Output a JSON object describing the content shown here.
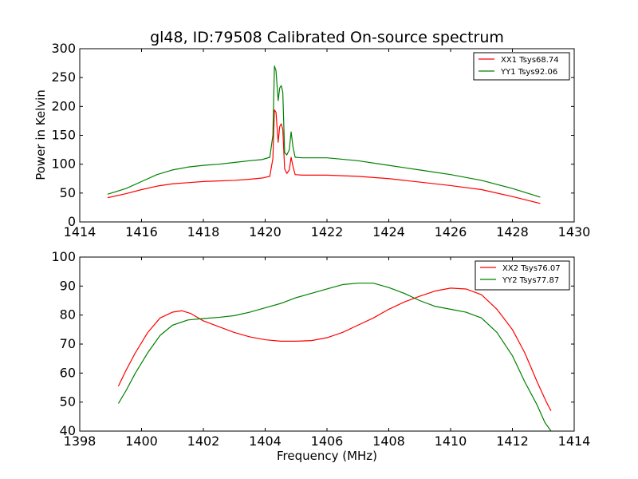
{
  "title": "gl48, ID:79508 Calibrated On-source spectrum",
  "chart_data": [
    {
      "type": "line",
      "title": "gl48, ID:79508 Calibrated On-source spectrum",
      "xlabel": "",
      "ylabel": "Power in Kelvin",
      "xlim": [
        1414,
        1430
      ],
      "ylim": [
        0,
        300
      ],
      "xticks": [
        1414,
        1416,
        1418,
        1420,
        1422,
        1424,
        1426,
        1428,
        1430
      ],
      "yticks": [
        0,
        50,
        100,
        150,
        200,
        250,
        300
      ],
      "grid": false,
      "legend_position": "top-right",
      "series": [
        {
          "name": "XX1 Tsys68.74",
          "color": "#ff0000",
          "points": [
            [
              1414.9,
              42
            ],
            [
              1415.5,
              49
            ],
            [
              1416.0,
              56
            ],
            [
              1416.5,
              62
            ],
            [
              1417.0,
              66
            ],
            [
              1417.5,
              68
            ],
            [
              1418.0,
              70
            ],
            [
              1418.5,
              71
            ],
            [
              1419.0,
              72
            ],
            [
              1419.5,
              74
            ],
            [
              1419.9,
              76
            ],
            [
              1420.15,
              79
            ],
            [
              1420.25,
              110
            ],
            [
              1420.3,
              194
            ],
            [
              1420.35,
              190
            ],
            [
              1420.42,
              138
            ],
            [
              1420.47,
              165
            ],
            [
              1420.52,
              170
            ],
            [
              1420.57,
              160
            ],
            [
              1420.63,
              92
            ],
            [
              1420.7,
              84
            ],
            [
              1420.78,
              90
            ],
            [
              1420.84,
              112
            ],
            [
              1420.9,
              96
            ],
            [
              1420.97,
              82
            ],
            [
              1421.2,
              81
            ],
            [
              1422.0,
              81
            ],
            [
              1423.0,
              79
            ],
            [
              1424.0,
              75
            ],
            [
              1425.0,
              69
            ],
            [
              1426.0,
              63
            ],
            [
              1427.0,
              56
            ],
            [
              1428.0,
              44
            ],
            [
              1428.9,
              32
            ]
          ]
        },
        {
          "name": "YY1 Tsys92.06",
          "color": "#008000",
          "points": [
            [
              1414.9,
              48
            ],
            [
              1415.5,
              58
            ],
            [
              1416.0,
              70
            ],
            [
              1416.5,
              82
            ],
            [
              1417.0,
              90
            ],
            [
              1417.5,
              95
            ],
            [
              1418.0,
              98
            ],
            [
              1418.5,
              100
            ],
            [
              1419.0,
              103
            ],
            [
              1419.5,
              106
            ],
            [
              1419.9,
              108
            ],
            [
              1420.15,
              112
            ],
            [
              1420.25,
              150
            ],
            [
              1420.3,
              270
            ],
            [
              1420.35,
              262
            ],
            [
              1420.42,
              210
            ],
            [
              1420.47,
              232
            ],
            [
              1420.52,
              236
            ],
            [
              1420.57,
              225
            ],
            [
              1420.63,
              120
            ],
            [
              1420.7,
              116
            ],
            [
              1420.78,
              125
            ],
            [
              1420.84,
              156
            ],
            [
              1420.9,
              130
            ],
            [
              1420.97,
              112
            ],
            [
              1421.2,
              111
            ],
            [
              1422.0,
              111
            ],
            [
              1423.0,
              106
            ],
            [
              1424.0,
              98
            ],
            [
              1425.0,
              90
            ],
            [
              1426.0,
              82
            ],
            [
              1427.0,
              72
            ],
            [
              1428.0,
              58
            ],
            [
              1428.9,
              43
            ]
          ]
        }
      ]
    },
    {
      "type": "line",
      "title": "",
      "xlabel": "Frequency (MHz)",
      "ylabel": "",
      "xlim": [
        1398,
        1414
      ],
      "ylim": [
        40,
        100
      ],
      "xticks": [
        1398,
        1400,
        1402,
        1404,
        1406,
        1408,
        1410,
        1412,
        1414
      ],
      "yticks": [
        40,
        50,
        60,
        70,
        80,
        90,
        100
      ],
      "grid": false,
      "legend_position": "top-right",
      "series": [
        {
          "name": "XX2 Tsys76.07",
          "color": "#ff0000",
          "points": [
            [
              1399.25,
              55.5
            ],
            [
              1399.5,
              61
            ],
            [
              1399.8,
              67
            ],
            [
              1400.2,
              74
            ],
            [
              1400.6,
              79
            ],
            [
              1401.0,
              81
            ],
            [
              1401.3,
              81.5
            ],
            [
              1401.6,
              80.5
            ],
            [
              1402.0,
              78
            ],
            [
              1402.5,
              76
            ],
            [
              1403.0,
              74
            ],
            [
              1403.5,
              72.5
            ],
            [
              1404.0,
              71.5
            ],
            [
              1404.5,
              71
            ],
            [
              1405.0,
              71
            ],
            [
              1405.5,
              71.2
            ],
            [
              1406.0,
              72.2
            ],
            [
              1406.5,
              74
            ],
            [
              1407.0,
              76.5
            ],
            [
              1407.5,
              79
            ],
            [
              1408.0,
              82
            ],
            [
              1408.5,
              84.5
            ],
            [
              1409.0,
              86.5
            ],
            [
              1409.5,
              88.3
            ],
            [
              1410.0,
              89.3
            ],
            [
              1410.5,
              89
            ],
            [
              1411.0,
              87
            ],
            [
              1411.5,
              82
            ],
            [
              1412.0,
              75
            ],
            [
              1412.4,
              67
            ],
            [
              1412.8,
              57
            ],
            [
              1413.1,
              50
            ],
            [
              1413.25,
              47
            ]
          ]
        },
        {
          "name": "YY2 Tsys77.87",
          "color": "#008000",
          "points": [
            [
              1399.25,
              49.5
            ],
            [
              1399.5,
              54
            ],
            [
              1399.8,
              60
            ],
            [
              1400.2,
              67
            ],
            [
              1400.6,
              73
            ],
            [
              1401.0,
              76.5
            ],
            [
              1401.5,
              78.3
            ],
            [
              1402.0,
              78.8
            ],
            [
              1402.5,
              79.2
            ],
            [
              1403.0,
              79.8
            ],
            [
              1403.5,
              81
            ],
            [
              1404.0,
              82.5
            ],
            [
              1404.5,
              84
            ],
            [
              1405.0,
              86
            ],
            [
              1405.5,
              87.5
            ],
            [
              1406.0,
              89
            ],
            [
              1406.5,
              90.5
            ],
            [
              1407.0,
              91
            ],
            [
              1407.5,
              91
            ],
            [
              1408.0,
              89.5
            ],
            [
              1408.5,
              87.5
            ],
            [
              1409.0,
              85
            ],
            [
              1409.5,
              83
            ],
            [
              1410.0,
              82
            ],
            [
              1410.5,
              81
            ],
            [
              1411.0,
              79
            ],
            [
              1411.5,
              74
            ],
            [
              1412.0,
              66
            ],
            [
              1412.4,
              57
            ],
            [
              1412.8,
              49
            ],
            [
              1413.05,
              43
            ],
            [
              1413.25,
              40
            ]
          ]
        }
      ]
    }
  ]
}
